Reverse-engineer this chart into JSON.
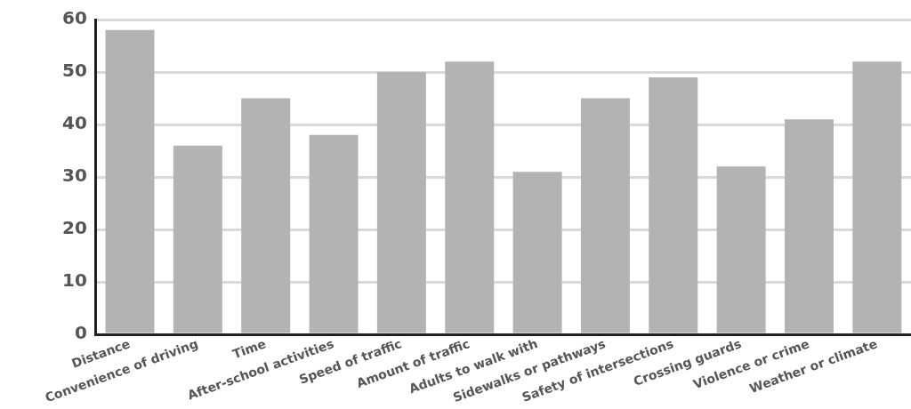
{
  "chart_data": {
    "type": "bar",
    "categories": [
      "Distance",
      "Convenience of driving",
      "Time",
      "After-school activities",
      "Speed of traffic",
      "Amount of traffic",
      "Adults to walk with",
      "Sidewalks or pathways",
      "Safety of intersections",
      "Crossing guards",
      "Violence or crime",
      "Weather or climate"
    ],
    "values": [
      58,
      36,
      45,
      38,
      50,
      52,
      31,
      45,
      49,
      32,
      41,
      52
    ],
    "color": "#b2b3b2",
    "ylim": [
      0,
      60
    ],
    "yticks": [
      0,
      10,
      20,
      30,
      40,
      50,
      60
    ],
    "grid": "y",
    "legend": false
  }
}
